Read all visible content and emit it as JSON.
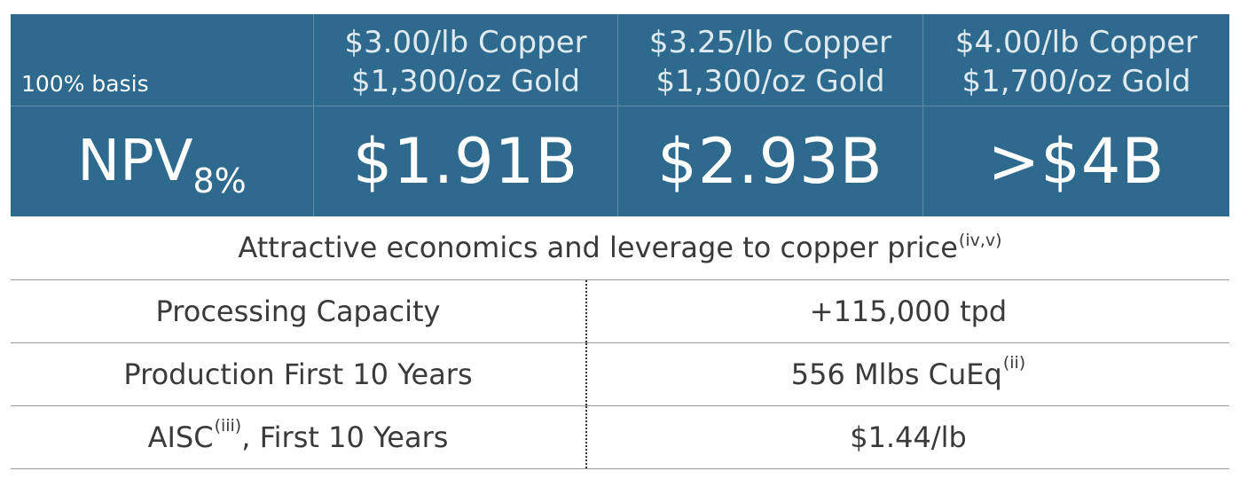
{
  "npv_table": {
    "basis_label": "100% basis",
    "scenarios": [
      {
        "copper": "$3.00/lb Copper",
        "gold": "$1,300/oz Gold",
        "npv": "$1.91B"
      },
      {
        "copper": "$3.25/lb Copper",
        "gold": "$1,300/oz Gold",
        "npv": "$2.93B"
      },
      {
        "copper": "$4.00/lb Copper",
        "gold": "$1,700/oz Gold",
        "npv": ">$4B"
      }
    ],
    "npv_label": "NPV",
    "npv_subscript": "8%",
    "background_color": "#2e6a8e"
  },
  "caption": {
    "text": "Attractive economics and leverage to copper price",
    "footnote": "(iv,v)"
  },
  "metrics": [
    {
      "label": "Processing Capacity",
      "label_note": "",
      "label_suffix": "",
      "value": "+115,000 tpd",
      "value_note": ""
    },
    {
      "label": "Production First 10 Years",
      "label_note": "",
      "label_suffix": "",
      "value": "556 Mlbs CuEq",
      "value_note": "(ii)"
    },
    {
      "label": "AISC",
      "label_note": "(iii)",
      "label_suffix": ", First 10 Years",
      "value": "$1.44/lb",
      "value_note": ""
    }
  ]
}
